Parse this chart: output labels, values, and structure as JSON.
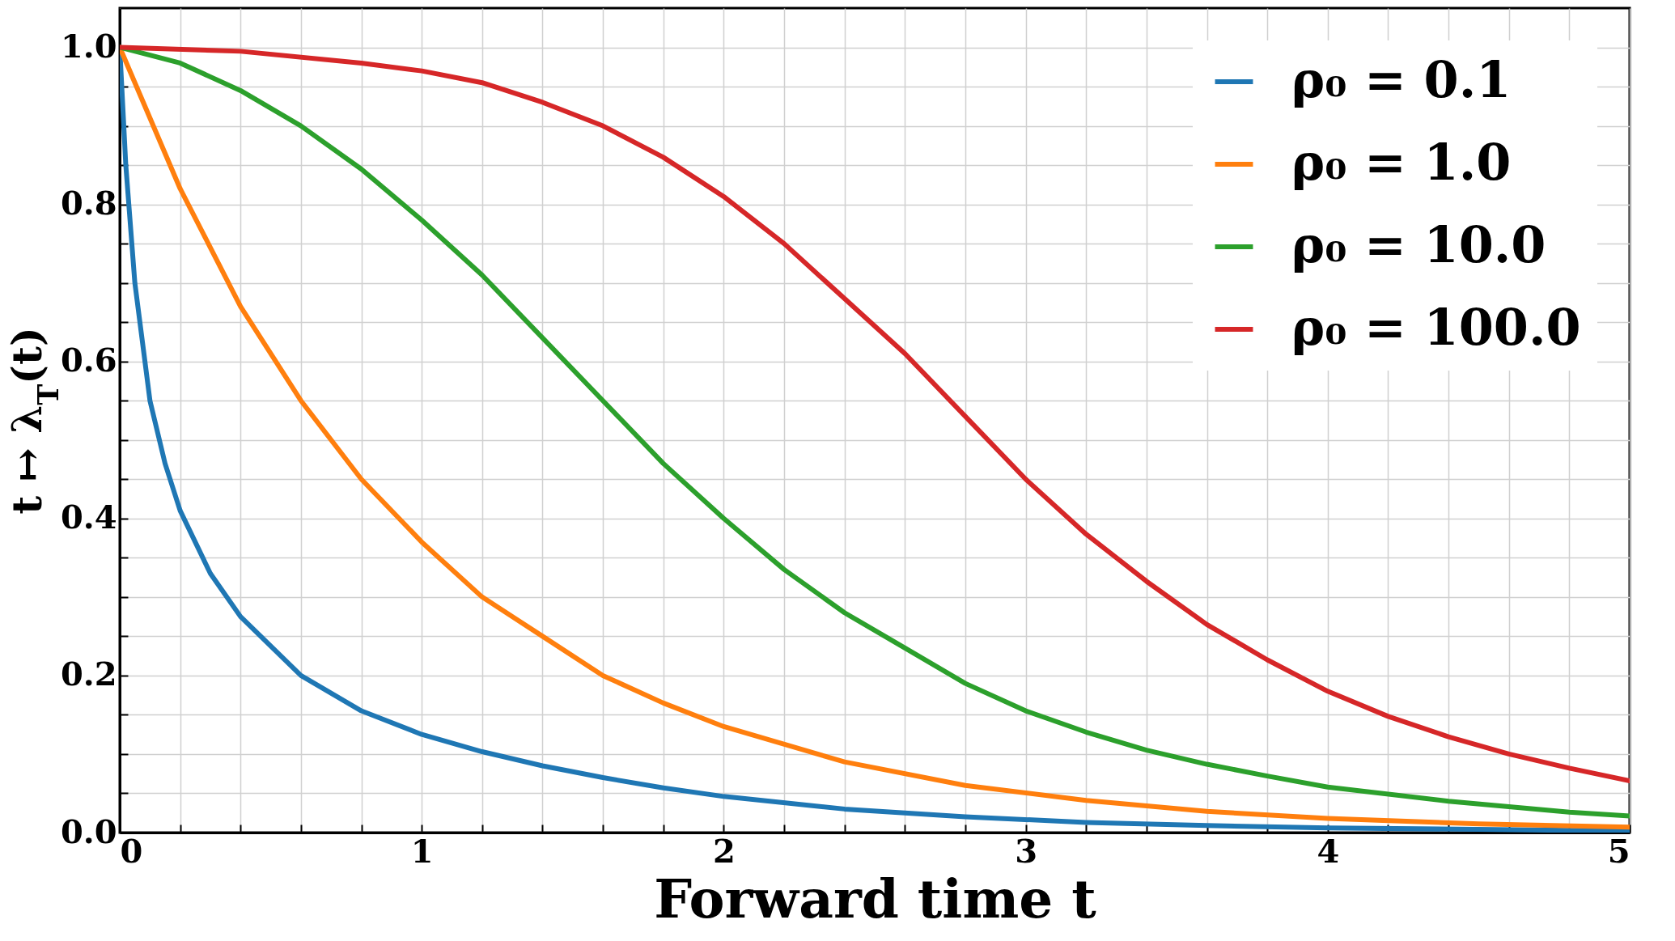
{
  "chart_data": {
    "type": "line",
    "xlabel": "Forward time t",
    "ylabel": "t ↦ λ$_{T}$(t)",
    "xlim": [
      0,
      5
    ],
    "ylim": [
      0,
      1.05
    ],
    "xticks": [
      0,
      {
        "value": 0.2,
        "label": null
      },
      {
        "value": 0.4,
        "label": null
      },
      {
        "value": 0.6,
        "label": null
      },
      {
        "value": 0.8,
        "label": null
      },
      1,
      {
        "value": 1.2,
        "label": null
      },
      {
        "value": 1.4,
        "label": null
      },
      {
        "value": 1.6,
        "label": null
      },
      {
        "value": 1.8,
        "label": null
      },
      2,
      {
        "value": 2.2,
        "label": null
      },
      {
        "value": 2.4,
        "label": null
      },
      {
        "value": 2.6,
        "label": null
      },
      {
        "value": 2.8,
        "label": null
      },
      3,
      {
        "value": 3.2,
        "label": null
      },
      {
        "value": 3.4,
        "label": null
      },
      {
        "value": 3.6,
        "label": null
      },
      {
        "value": 3.8,
        "label": null
      },
      4,
      {
        "value": 4.2,
        "label": null
      },
      {
        "value": 4.4,
        "label": null
      },
      {
        "value": 4.6,
        "label": null
      },
      {
        "value": 4.8,
        "label": null
      },
      5
    ],
    "yticks": [
      {
        "value": 0,
        "label": "0.0"
      },
      {
        "value": 0.05,
        "label": null
      },
      {
        "value": 0.1,
        "label": null
      },
      {
        "value": 0.15,
        "label": null
      },
      0.2,
      {
        "value": 0.25,
        "label": null
      },
      {
        "value": 0.3,
        "label": null
      },
      {
        "value": 0.35,
        "label": null
      },
      0.4,
      {
        "value": 0.45,
        "label": null
      },
      {
        "value": 0.5,
        "label": null
      },
      {
        "value": 0.55,
        "label": null
      },
      0.6,
      {
        "value": 0.65,
        "label": null
      },
      {
        "value": 0.7,
        "label": null
      },
      {
        "value": 0.75,
        "label": null
      },
      0.8,
      {
        "value": 0.85,
        "label": null
      },
      {
        "value": 0.9,
        "label": null
      },
      {
        "value": 0.95,
        "label": null
      },
      {
        "value": 1,
        "label": "1.0"
      }
    ],
    "grid": true,
    "legend": "top right",
    "line_style": "solid",
    "series": [
      {
        "name": "ρ₀ = 0.1",
        "color": "#1f77b4",
        "x": [
          0,
          0.02,
          0.05,
          0.1,
          0.15,
          0.2,
          0.3,
          0.4,
          0.6,
          0.8,
          1,
          1.2,
          1.4,
          1.6,
          1.8,
          2,
          2.4,
          2.8,
          3.2,
          3.6,
          4,
          4.5,
          5
        ],
        "values": [
          1,
          0.85,
          0.7,
          0.55,
          0.47,
          0.41,
          0.33,
          0.275,
          0.2,
          0.155,
          0.125,
          0.103,
          0.085,
          0.07,
          0.057,
          0.046,
          0.03,
          0.02,
          0.013,
          0.009,
          0.006,
          0.004,
          0.002
        ]
      },
      {
        "name": "ρ₀ = 1.0",
        "color": "#ff7f0e",
        "x": [
          0,
          0.2,
          0.4,
          0.6,
          0.8,
          1,
          1.2,
          1.4,
          1.6,
          1.8,
          2,
          2.4,
          2.8,
          3.2,
          3.6,
          4,
          4.5,
          5
        ],
        "values": [
          1,
          0.82,
          0.67,
          0.55,
          0.45,
          0.37,
          0.3,
          0.25,
          0.2,
          0.165,
          0.135,
          0.09,
          0.06,
          0.041,
          0.027,
          0.018,
          0.011,
          0.007
        ]
      },
      {
        "name": "ρ₀ = 10.0",
        "color": "#2ca02c",
        "x": [
          0,
          0.2,
          0.4,
          0.6,
          0.8,
          1,
          1.2,
          1.4,
          1.6,
          1.8,
          2,
          2.2,
          2.4,
          2.6,
          2.8,
          3,
          3.2,
          3.4,
          3.6,
          3.8,
          4,
          4.4,
          4.8,
          5
        ],
        "values": [
          1,
          0.98,
          0.945,
          0.9,
          0.845,
          0.78,
          0.71,
          0.63,
          0.55,
          0.47,
          0.4,
          0.335,
          0.28,
          0.235,
          0.19,
          0.155,
          0.128,
          0.105,
          0.087,
          0.072,
          0.058,
          0.04,
          0.026,
          0.021
        ]
      },
      {
        "name": "ρ₀ = 100.0",
        "color": "#d62728",
        "x": [
          0,
          0.4,
          0.8,
          1,
          1.2,
          1.4,
          1.6,
          1.8,
          2,
          2.2,
          2.4,
          2.6,
          2.8,
          3,
          3.2,
          3.4,
          3.6,
          3.8,
          4,
          4.2,
          4.4,
          4.6,
          4.8,
          5
        ],
        "values": [
          1,
          0.995,
          0.98,
          0.97,
          0.955,
          0.93,
          0.9,
          0.86,
          0.81,
          0.75,
          0.68,
          0.61,
          0.53,
          0.45,
          0.38,
          0.32,
          0.265,
          0.22,
          0.18,
          0.148,
          0.122,
          0.1,
          0.082,
          0.066
        ]
      }
    ]
  }
}
